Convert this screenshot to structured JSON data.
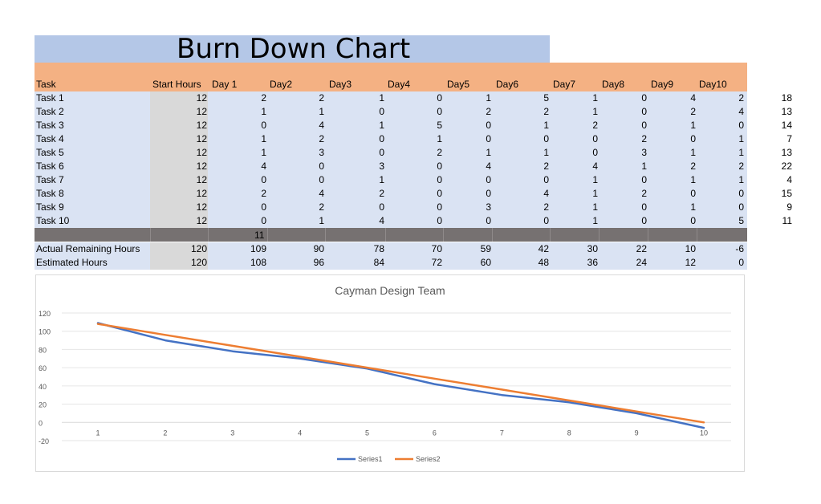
{
  "title": "Burn Down Chart",
  "headers": [
    "Task",
    "Start Hours",
    "Day 1",
    "Day2",
    "Day3",
    "Day4",
    "Day5",
    "Day6",
    "Day7",
    "Day8",
    "Day9",
    "Day10"
  ],
  "rows": [
    {
      "task": "Task 1",
      "start": "12",
      "days": [
        "2",
        "2",
        "1",
        "0",
        "1",
        "5",
        "1",
        "0",
        "4",
        "2"
      ],
      "extra": "18"
    },
    {
      "task": "Task 2",
      "start": "12",
      "days": [
        "1",
        "1",
        "0",
        "0",
        "2",
        "2",
        "1",
        "0",
        "2",
        "4"
      ],
      "extra": "13"
    },
    {
      "task": "Task 3",
      "start": "12",
      "days": [
        "0",
        "4",
        "1",
        "5",
        "0",
        "1",
        "2",
        "0",
        "1",
        "0"
      ],
      "extra": "14"
    },
    {
      "task": "Task 4",
      "start": "12",
      "days": [
        "1",
        "2",
        "0",
        "1",
        "0",
        "0",
        "0",
        "2",
        "0",
        "1"
      ],
      "extra": "7"
    },
    {
      "task": "Task 5",
      "start": "12",
      "days": [
        "1",
        "3",
        "0",
        "2",
        "1",
        "1",
        "0",
        "3",
        "1",
        "1"
      ],
      "extra": "13"
    },
    {
      "task": "Task 6",
      "start": "12",
      "days": [
        "4",
        "0",
        "3",
        "0",
        "4",
        "2",
        "4",
        "1",
        "2",
        "2"
      ],
      "extra": "22"
    },
    {
      "task": "Task 7",
      "start": "12",
      "days": [
        "0",
        "0",
        "1",
        "0",
        "0",
        "0",
        "1",
        "0",
        "1",
        "1"
      ],
      "extra": "4"
    },
    {
      "task": "Task 8",
      "start": "12",
      "days": [
        "2",
        "4",
        "2",
        "0",
        "0",
        "4",
        "1",
        "2",
        "0",
        "0"
      ],
      "extra": "15"
    },
    {
      "task": "Task 9",
      "start": "12",
      "days": [
        "0",
        "2",
        "0",
        "0",
        "3",
        "2",
        "1",
        "0",
        "1",
        "0"
      ],
      "extra": "9"
    },
    {
      "task": "Task 10",
      "start": "12",
      "days": [
        "0",
        "1",
        "4",
        "0",
        "0",
        "0",
        "1",
        "0",
        "0",
        "5"
      ],
      "extra": "11"
    }
  ],
  "sum_value": "11",
  "actual": {
    "label": "Actual Remaining Hours",
    "start": "120",
    "days": [
      "109",
      "90",
      "78",
      "70",
      "59",
      "42",
      "30",
      "22",
      "10",
      "-6"
    ]
  },
  "estimated": {
    "label": "Estimated Hours",
    "start": "120",
    "days": [
      "108",
      "96",
      "84",
      "72",
      "60",
      "48",
      "36",
      "24",
      "12",
      "0"
    ]
  },
  "chart_data": {
    "type": "line",
    "title": "Cayman Design Team",
    "x": [
      1,
      2,
      3,
      4,
      5,
      6,
      7,
      8,
      9,
      10
    ],
    "series": [
      {
        "name": "Series1",
        "values": [
          109,
          90,
          78,
          70,
          59,
          42,
          30,
          22,
          10,
          -6
        ],
        "color": "#4472c4"
      },
      {
        "name": "Series2",
        "values": [
          108,
          96,
          84,
          72,
          60,
          48,
          36,
          24,
          12,
          0
        ],
        "color": "#ed7d31"
      }
    ],
    "yticks": [
      120,
      100,
      80,
      60,
      40,
      20,
      0,
      -20
    ],
    "ylim": [
      -20,
      120
    ],
    "grid": true,
    "legend": "bottom"
  },
  "colors": {
    "title_bg": "#b4c7e7",
    "header_bg": "#f4b183",
    "body_bg": "#dae3f3",
    "start_col_bg": "#d9d9d9",
    "sum_row_bg": "#767171"
  }
}
